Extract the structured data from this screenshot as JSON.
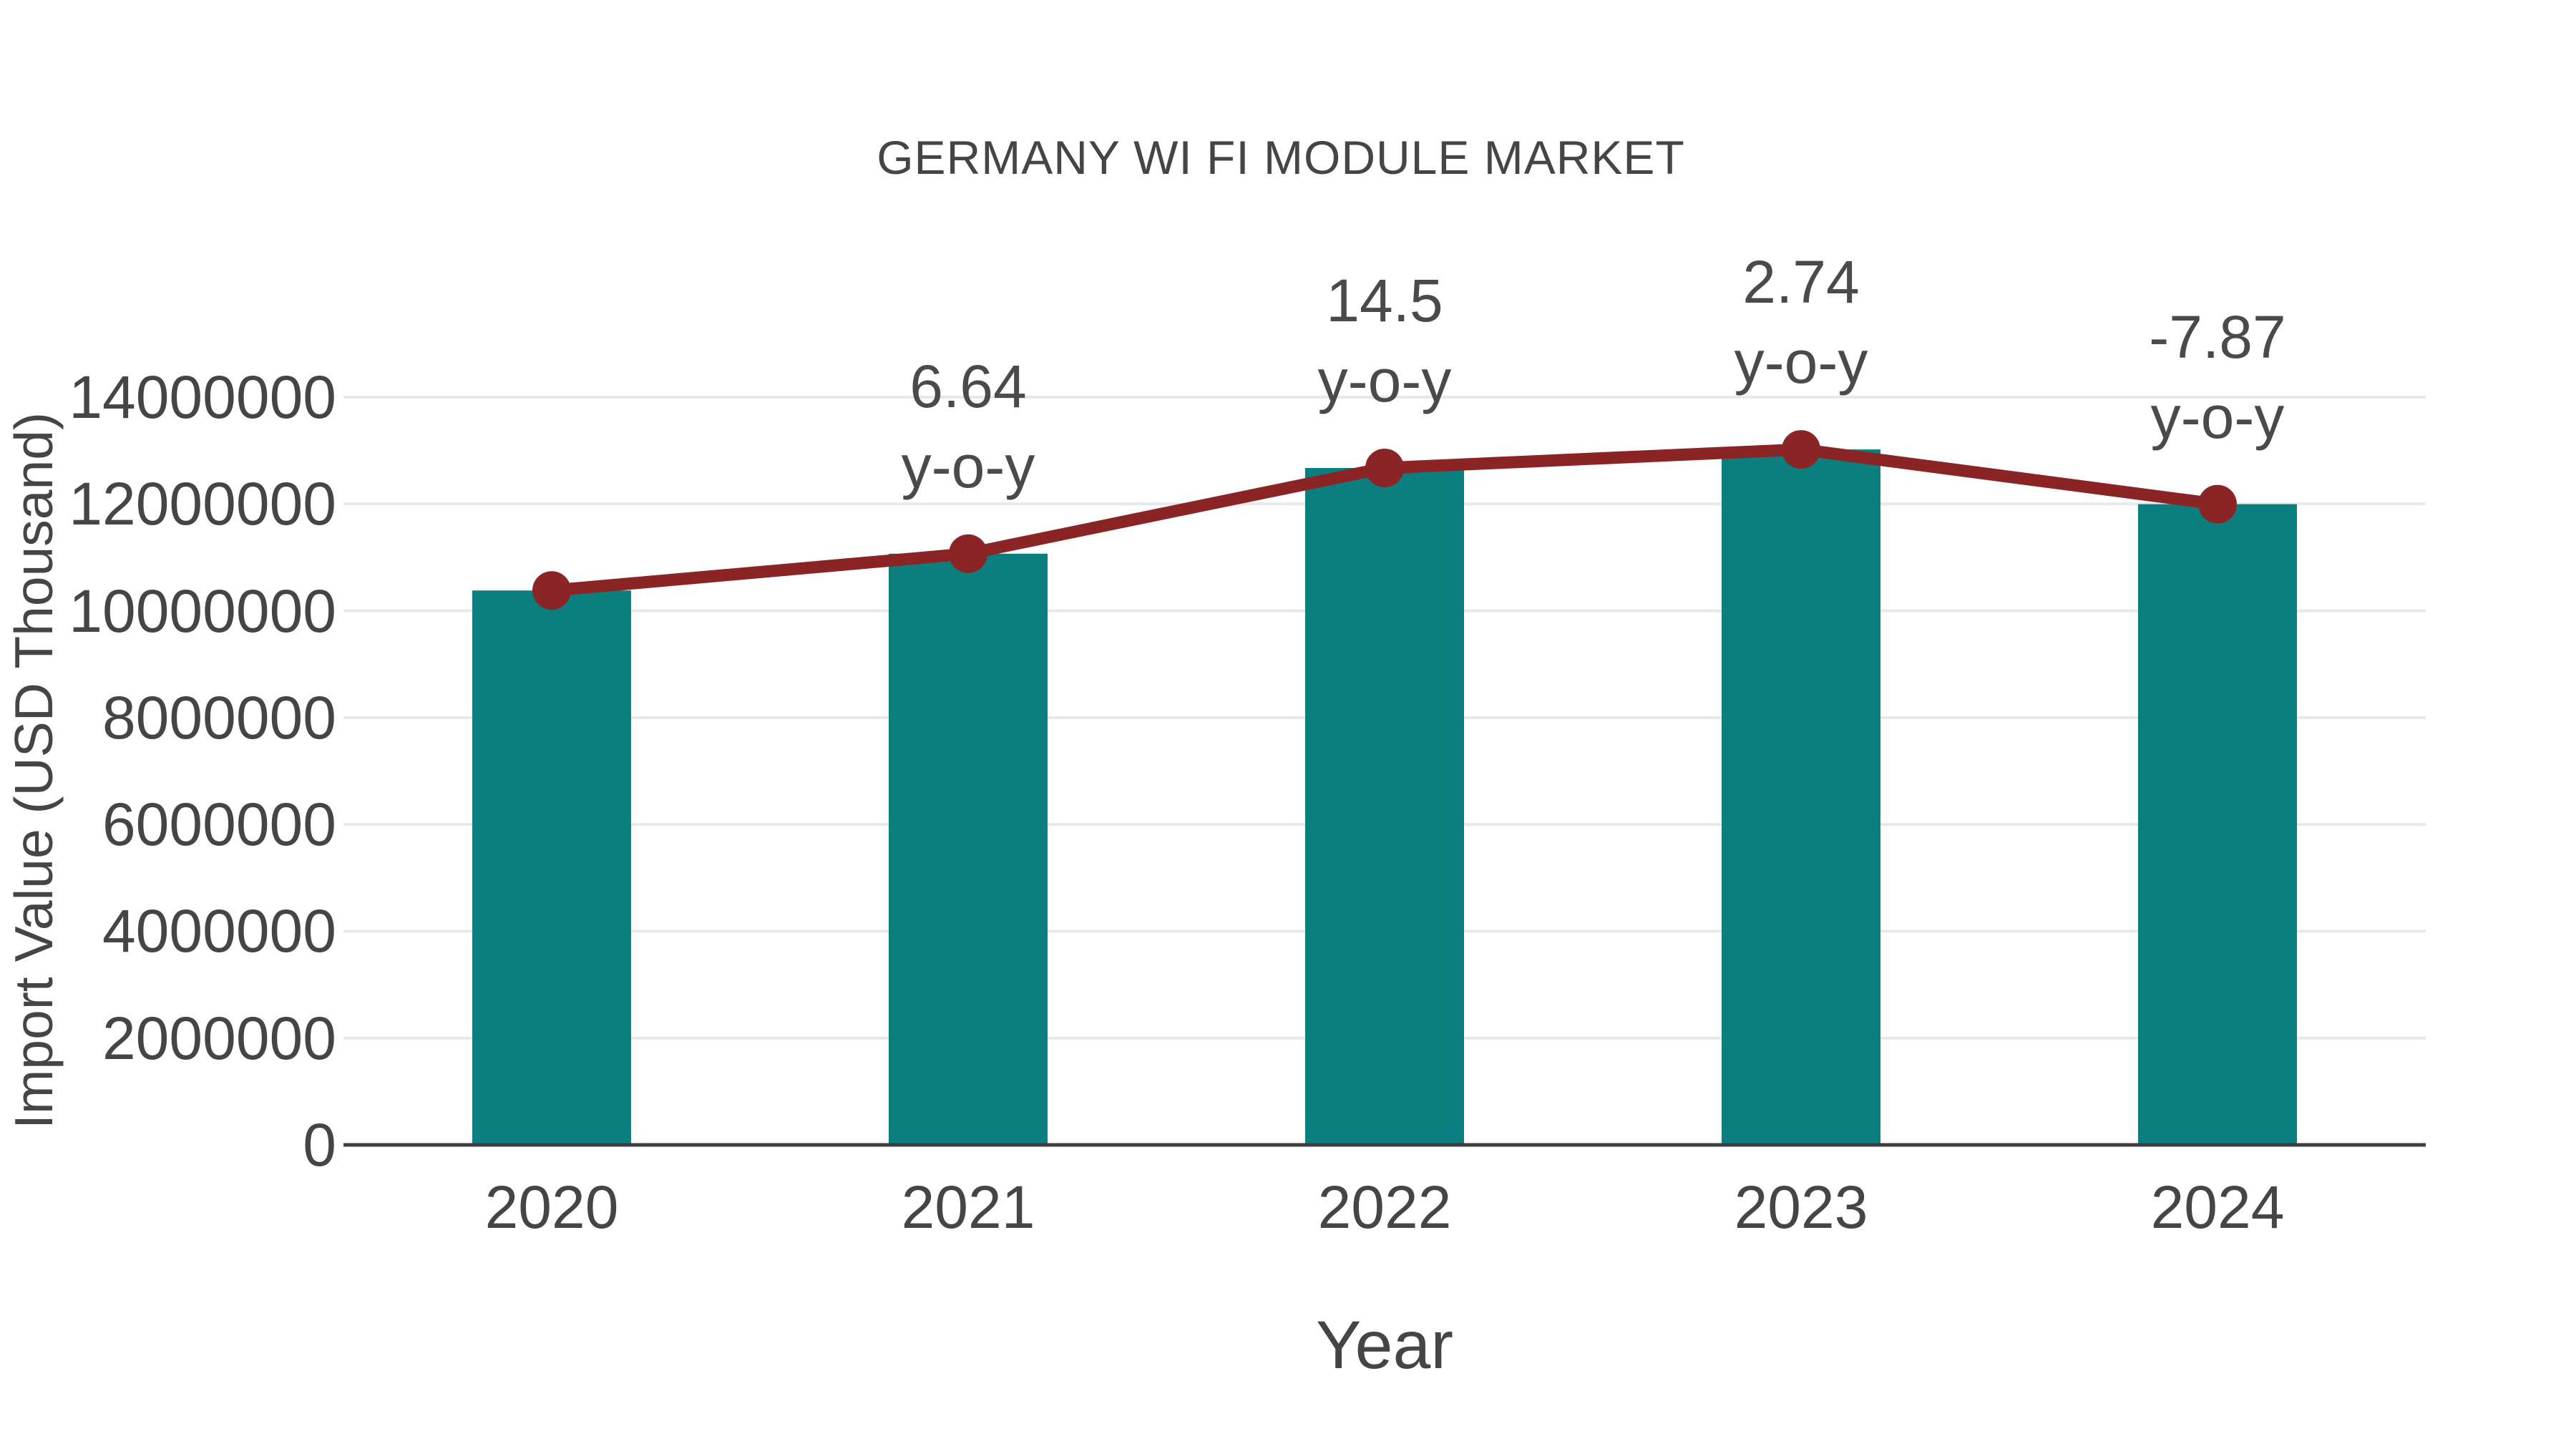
{
  "page": {
    "background_color": "#ffffff"
  },
  "chart_data": {
    "type": "bar",
    "title": "GERMANY WI FI MODULE MARKET",
    "xlabel": "Year",
    "ylabel": "Import Value (USD Thousand)",
    "categories": [
      "2020",
      "2021",
      "2022",
      "2023",
      "2024"
    ],
    "series": [
      {
        "name": "Import Value bars",
        "type": "bar",
        "color": "#0b7f7f",
        "values": [
          10380000,
          11069000,
          12674000,
          13021000,
          11996000
        ]
      },
      {
        "name": "Import Value trend line",
        "type": "line",
        "color": "#8b2424",
        "marker_color": "#8b2424",
        "values": [
          10380000,
          11069000,
          12674000,
          13021000,
          11996000
        ]
      }
    ],
    "annotations": [
      {
        "category": "2021",
        "yoy_percent": 6.64,
        "line1": "6.64",
        "line2": "y-o-y"
      },
      {
        "category": "2022",
        "yoy_percent": 14.5,
        "line1": "14.5",
        "line2": "y-o-y"
      },
      {
        "category": "2023",
        "yoy_percent": 2.74,
        "line1": "2.74",
        "line2": "y-o-y"
      },
      {
        "category": "2024",
        "yoy_percent": -7.87,
        "line1": "-7.87",
        "line2": "y-o-y"
      }
    ],
    "ylim": [
      0,
      14000000
    ],
    "yticks": [
      0,
      2000000,
      4000000,
      6000000,
      8000000,
      10000000,
      12000000,
      14000000
    ],
    "grid": true,
    "legend_visible": false,
    "gridline_color": "#e8e8e8",
    "axisline_color": "#3d3d3d",
    "text_color": "#454545"
  }
}
